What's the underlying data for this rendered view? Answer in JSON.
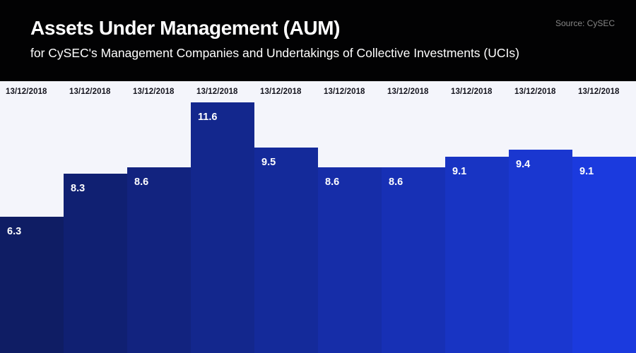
{
  "header": {
    "title": "Assets Under Management (AUM)",
    "subtitle": "for CySEC's Management Companies and Undertakings of Collective Investments (UCIs)",
    "source": "Source: CySEC"
  },
  "colors": {
    "header_bg": "#020203",
    "chart_bg": "#f4f5fb",
    "title_text": "#ffffff",
    "subtitle_text": "#ffffff",
    "source_text": "#868686",
    "category_text": "#14141d",
    "value_text": "#ffffff"
  },
  "chart_data": {
    "type": "bar",
    "title": "Assets Under Management (AUM)",
    "subtitle": "for CySEC's Management Companies and Undertakings of Collective Investments (UCIs)",
    "source": "Source: CySEC",
    "categories": [
      "13/12/2018",
      "13/12/2018",
      "13/12/2018",
      "13/12/2018",
      "13/12/2018",
      "13/12/2018",
      "13/12/2018",
      "13/12/2018",
      "13/12/2018",
      "13/12/2018"
    ],
    "values": [
      6.3,
      8.3,
      8.6,
      11.6,
      9.5,
      8.6,
      8.6,
      9.1,
      9.4,
      9.1
    ],
    "bar_colors": [
      "#0f1d64",
      "#102072",
      "#12237f",
      "#13278d",
      "#142a9a",
      "#162da8",
      "#1730b5",
      "#1834c3",
      "#1a37d0",
      "#1b3ade"
    ],
    "xlabel": "",
    "ylabel": "",
    "ylim": [
      0,
      12.6
    ],
    "grid": false,
    "legend": "none",
    "value_labels": "inside-top-left",
    "category_labels": "above-columns"
  }
}
